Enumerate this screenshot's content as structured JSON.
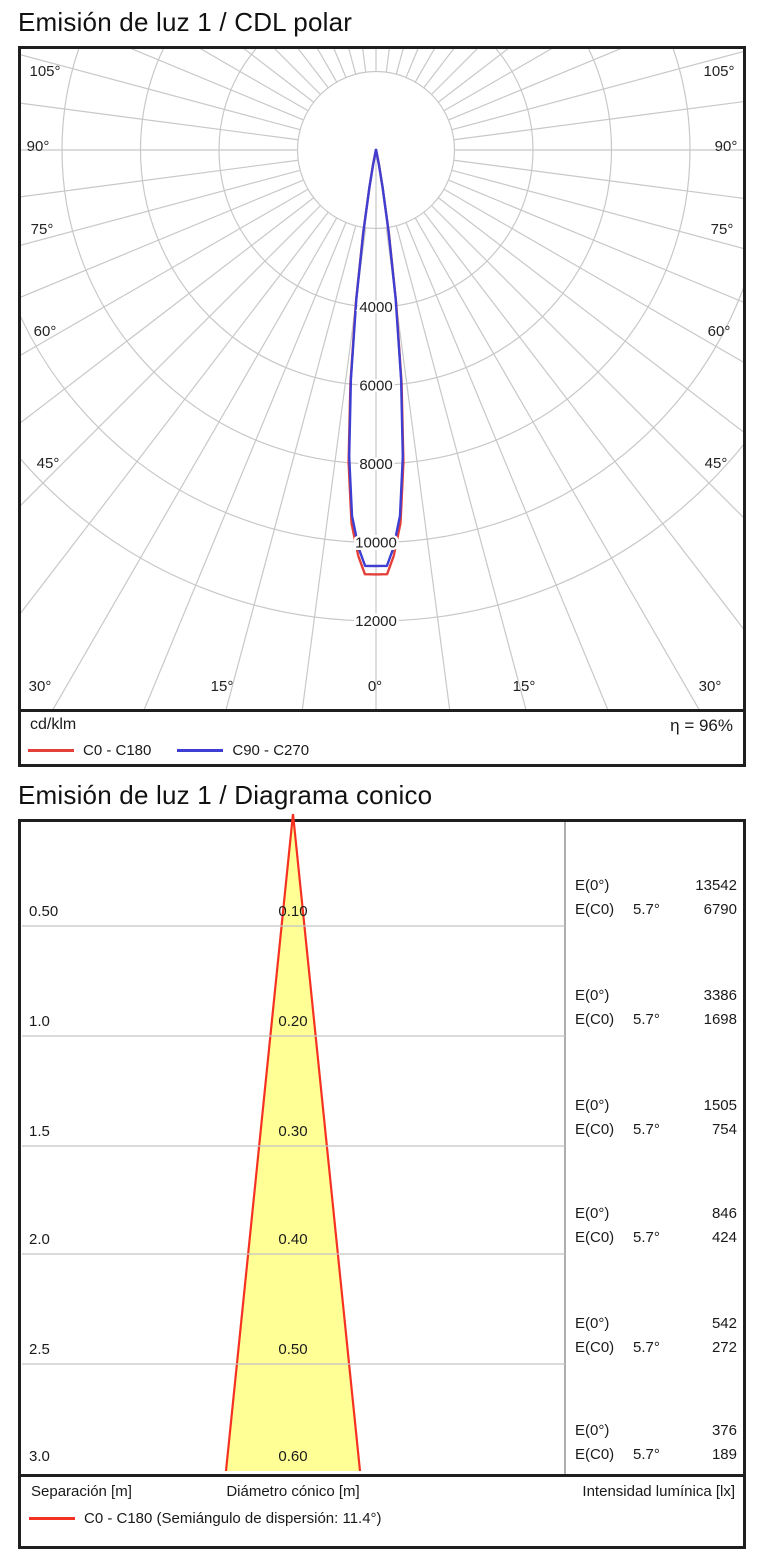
{
  "polar_chart": {
    "title": "Emisión de luz 1 / CDL polar",
    "unit_label": "cd/klm",
    "efficiency_label": "η = 96%",
    "legend": [
      {
        "label": "C0 - C180",
        "color": "#e4403a"
      },
      {
        "label": "C90 - C270",
        "color": "#3e3ed2"
      }
    ],
    "angle_labels_left": [
      "105°",
      "90°",
      "75°",
      "60°",
      "45°"
    ],
    "angle_labels_right": [
      "105°",
      "90°",
      "75°",
      "60°",
      "45°"
    ],
    "angle_labels_bottom": [
      "30°",
      "15°",
      "0°",
      "15°",
      "30°"
    ],
    "grid_color": "#c8c8c8"
  },
  "cone_chart": {
    "title": "Emisión de luz 1 / Diagrama conico",
    "e0_label": "E(0°)",
    "ec0_label": "E(C0)",
    "footer": {
      "separation": "Separación [m]",
      "diameter": "Diámetro cónico [m]",
      "intensity": "Intensidad lumínica [lx]"
    },
    "legend_label": "C0 - C180 (Semiángulo de dispersión: 11.4°)",
    "legend_color": "#f53222",
    "cone_fill": "#ffff96",
    "cone_stroke": "#f53222"
  },
  "chart_data": [
    {
      "type": "polar",
      "title": "Emisión de luz 1 / CDL polar",
      "unit": "cd/klm",
      "efficiency_percent": 96,
      "radial_ticks": [
        2000,
        4000,
        6000,
        8000,
        10000,
        12000
      ],
      "radial_tick_labels": [
        "4000",
        "6000",
        "8000",
        "10000",
        "12000"
      ],
      "angle_ticks_deg": [
        0,
        15,
        30,
        45,
        60,
        75,
        90,
        105
      ],
      "spoke_step_deg": 7.5,
      "legend_position": "bottom",
      "series": [
        {
          "name": "C0 - C180",
          "color": "#e4403a",
          "points": [
            [
              0,
              10600
            ],
            [
              1.5,
              10600
            ],
            [
              2.5,
              10150
            ],
            [
              3.75,
              9340
            ],
            [
              5,
              7840
            ],
            [
              6.25,
              5880
            ],
            [
              7.5,
              3840
            ],
            [
              8.75,
              2110
            ],
            [
              10,
              950
            ],
            [
              11.25,
              380
            ],
            [
              12.5,
              110
            ],
            [
              15,
              30
            ],
            [
              20,
              15
            ],
            [
              30,
              10
            ],
            [
              45,
              8
            ],
            [
              60,
              6
            ],
            [
              75,
              5
            ],
            [
              90,
              4
            ],
            [
              105,
              2
            ],
            [
              120,
              0
            ],
            [
              180,
              0
            ]
          ]
        },
        {
          "name": "C90 - C270",
          "color": "#3e3ed2",
          "points": [
            [
              0,
              10600
            ],
            [
              1.5,
              10600
            ],
            [
              2.5,
              10150
            ],
            [
              3.75,
              9340
            ],
            [
              5,
              7840
            ],
            [
              6.25,
              5880
            ],
            [
              7.5,
              3840
            ],
            [
              8.75,
              2110
            ],
            [
              10,
              950
            ],
            [
              11.25,
              380
            ],
            [
              12.5,
              110
            ],
            [
              15,
              30
            ],
            [
              20,
              15
            ],
            [
              30,
              10
            ],
            [
              45,
              8
            ],
            [
              60,
              6
            ],
            [
              75,
              5
            ],
            [
              90,
              4
            ],
            [
              105,
              2
            ],
            [
              120,
              0
            ],
            [
              180,
              0
            ]
          ]
        }
      ]
    },
    {
      "type": "cone_diagram",
      "title": "Emisión de luz 1 / Diagrama conico",
      "beam_half_angle_deg": 5.7,
      "dispersion_semiangle_deg": 11.4,
      "columns": [
        "Separación [m]",
        "Diámetro cónico [m]",
        "Intensidad lumínica [lx]"
      ],
      "rows": [
        {
          "separation": "0.50",
          "diameter": "0.10",
          "E0": 13542,
          "EC0": 6790,
          "half_angle": "5.7°"
        },
        {
          "separation": "1.0",
          "diameter": "0.20",
          "E0": 3386,
          "EC0": 1698,
          "half_angle": "5.7°"
        },
        {
          "separation": "1.5",
          "diameter": "0.30",
          "E0": 1505,
          "EC0": 754,
          "half_angle": "5.7°"
        },
        {
          "separation": "2.0",
          "diameter": "0.40",
          "E0": 846,
          "EC0": 424,
          "half_angle": "5.7°"
        },
        {
          "separation": "2.5",
          "diameter": "0.50",
          "E0": 542,
          "EC0": 272,
          "half_angle": "5.7°"
        },
        {
          "separation": "3.0",
          "diameter": "0.60",
          "E0": 376,
          "EC0": 189,
          "half_angle": "5.7°"
        }
      ]
    }
  ]
}
